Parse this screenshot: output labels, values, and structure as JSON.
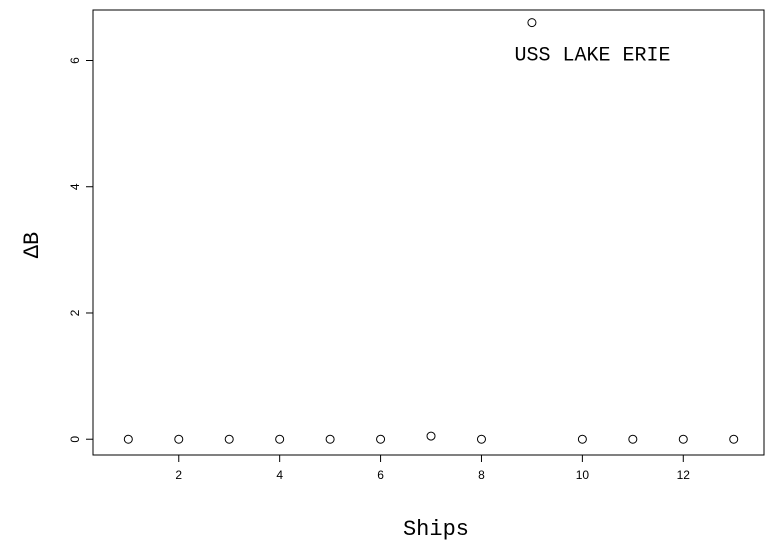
{
  "chart_data": {
    "type": "scatter",
    "xlabel": "Ships",
    "ylabel": "ΔB",
    "xlim": [
      0.3,
      13.6
    ],
    "ylim": [
      -0.25,
      6.8
    ],
    "x_ticks": [
      2,
      4,
      6,
      8,
      10,
      12
    ],
    "y_ticks": [
      0,
      2,
      4,
      6
    ],
    "grid": false,
    "legend": "none",
    "marker": "open-circle",
    "points": [
      {
        "x": 1,
        "y": 0
      },
      {
        "x": 2,
        "y": 0
      },
      {
        "x": 3,
        "y": 0
      },
      {
        "x": 4,
        "y": 0
      },
      {
        "x": 5,
        "y": 0
      },
      {
        "x": 6,
        "y": 0
      },
      {
        "x": 7,
        "y": 0.05
      },
      {
        "x": 8,
        "y": 0
      },
      {
        "x": 9,
        "y": 6.6
      },
      {
        "x": 10,
        "y": 0
      },
      {
        "x": 11,
        "y": 0
      },
      {
        "x": 12,
        "y": 0
      },
      {
        "x": 13,
        "y": 0
      }
    ],
    "annotations": [
      {
        "text": "USS LAKE ERIE",
        "x": 10.2,
        "y": 6.0
      }
    ]
  }
}
